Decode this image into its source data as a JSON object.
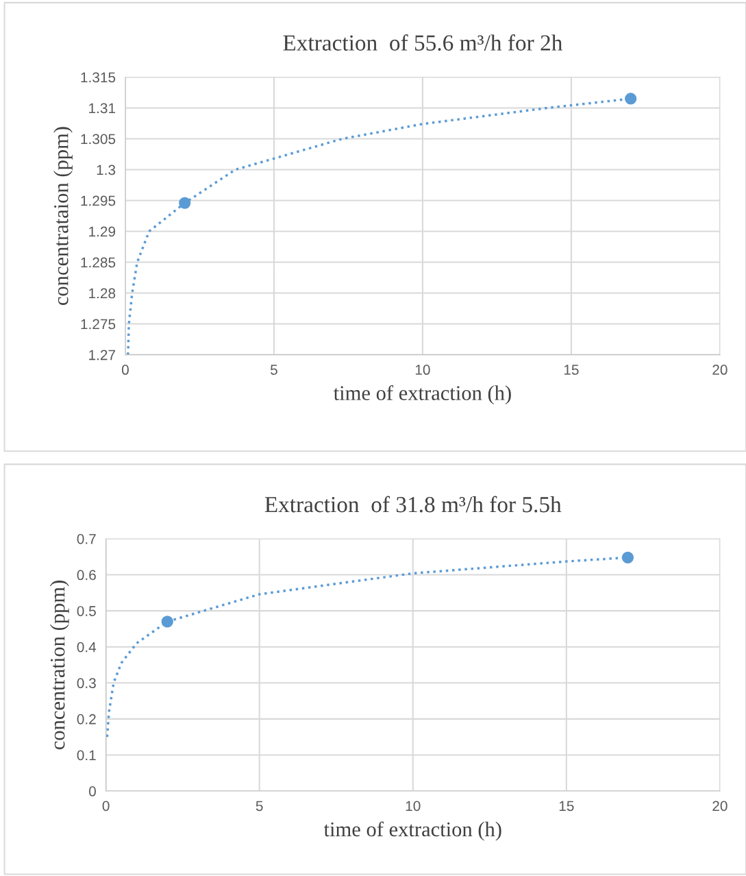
{
  "chart_data": [
    {
      "type": "scatter",
      "title": "Extraction  of 55.6 m³/h for 2h",
      "xlabel": "time of extraction (h)",
      "ylabel": "concentrataion (ppm)",
      "xlim": [
        0,
        20
      ],
      "xticks": [
        0,
        5,
        10,
        15,
        20
      ],
      "ylim": [
        1.27,
        1.315
      ],
      "yticks": [
        {
          "value": 1.27,
          "label": "1.27"
        },
        {
          "value": 1.275,
          "label": "1.275"
        },
        {
          "value": 1.28,
          "label": "1.28"
        },
        {
          "value": 1.285,
          "label": "1.285"
        },
        {
          "value": 1.29,
          "label": "1.29"
        },
        {
          "value": 1.295,
          "label": "1.295"
        },
        {
          "value": 1.3,
          "label": "1.3"
        },
        {
          "value": 1.305,
          "label": "1.305"
        },
        {
          "value": 1.31,
          "label": "1.31"
        },
        {
          "value": 1.315,
          "label": "1.315"
        }
      ],
      "grid": true,
      "legend": false,
      "series": [
        {
          "type": "line",
          "color": "#5b9bd5",
          "line_style": "dotted",
          "marker": "none",
          "x": [
            0.09,
            0.12,
            0.23,
            0.4,
            0.8,
            2,
            3.7,
            5,
            7.3,
            10,
            14.2,
            17
          ],
          "values": [
            1.27,
            1.275,
            1.28,
            1.285,
            1.29,
            1.2946,
            1.3,
            1.3018,
            1.305,
            1.3074,
            1.31,
            1.3115
          ]
        },
        {
          "color": "#5b9bd5",
          "marker": "circle",
          "x": [
            2,
            17
          ],
          "values": [
            1.2946,
            1.3115
          ]
        }
      ]
    },
    {
      "type": "scatter",
      "title": "Extraction  of 31.8 m³/h for 5.5h",
      "xlabel": "time of extraction (h)",
      "ylabel": "concentration (ppm)",
      "xlim": [
        0,
        20
      ],
      "xticks": [
        0,
        5,
        10,
        15,
        20
      ],
      "ylim": [
        0,
        0.7
      ],
      "yticks": [
        0,
        0.1,
        0.2,
        0.3,
        0.4,
        0.5,
        0.6,
        0.7
      ],
      "grid": true,
      "legend": false,
      "series": [
        {
          "type": "line",
          "color": "#5b9bd5",
          "line_style": "dotted",
          "marker": "none",
          "x": [
            0.04,
            0.1,
            0.25,
            0.5,
            1,
            2,
            5,
            10,
            15,
            17
          ],
          "values": [
            0.15,
            0.22,
            0.3,
            0.355,
            0.41,
            0.47,
            0.546,
            0.604,
            0.637,
            0.648
          ]
        },
        {
          "color": "#5b9bd5",
          "marker": "circle",
          "x": [
            2,
            17
          ],
          "values": [
            0.47,
            0.648
          ]
        }
      ]
    }
  ]
}
